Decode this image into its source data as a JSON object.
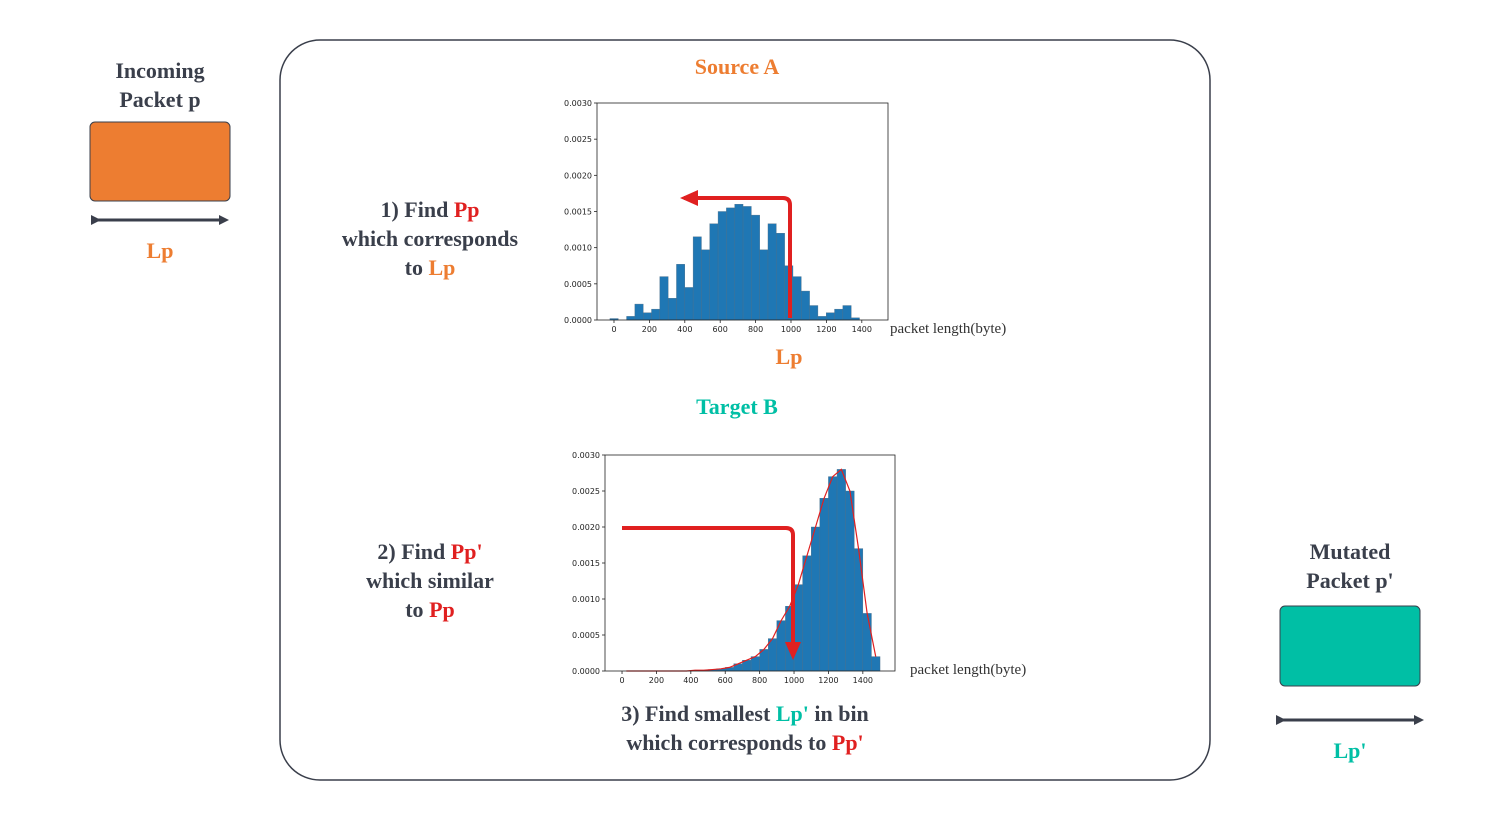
{
  "input": {
    "title_lines": [
      "Incoming",
      "Packet p"
    ],
    "length_label": "Lp"
  },
  "output": {
    "title_lines": [
      "Mutated",
      "Packet p'"
    ],
    "length_label": "Lp'"
  },
  "source_heading": "Source A",
  "target_heading": "Target B",
  "steps": [
    {
      "parts": [
        "1) Find ",
        "Pp",
        "which corresponds",
        "to ",
        "Lp"
      ]
    },
    {
      "parts": [
        "2) Find ",
        "Pp'",
        "which similar",
        "to ",
        "Pp"
      ]
    },
    {
      "parts": [
        "3) Find smallest ",
        "Lp'",
        " in bin",
        "which corresponds to ",
        "Pp'"
      ]
    }
  ],
  "source_histogram": {
    "type": "histogram",
    "bins": [
      -23,
      24,
      71,
      118,
      165,
      212,
      259,
      306,
      353,
      400,
      447,
      494,
      541,
      588,
      635,
      682,
      729,
      776,
      823,
      870,
      917,
      964,
      1011,
      1058,
      1105,
      1152,
      1199,
      1246,
      1293,
      1340,
      1387,
      1434,
      1481
    ],
    "counts": [
      2e-05,
      0,
      5e-05,
      0.00022,
      0.0001,
      0.00015,
      0.0006,
      0.0003,
      0.00077,
      0.00045,
      0.00115,
      0.00097,
      0.00133,
      0.0015,
      0.00155,
      0.0016,
      0.00157,
      0.00145,
      0.00097,
      0.00133,
      0.0012,
      0.00075,
      0.0006,
      0.0004,
      0.0002,
      5e-05,
      0.0001,
      0.00015,
      0.0002,
      3e-05,
      0,
      0
    ],
    "color": "#1f77b4",
    "xlim": [
      -96,
      1548
    ],
    "ylim": [
      0,
      0.003
    ],
    "xticks": [
      0,
      200,
      400,
      600,
      800,
      1000,
      1200,
      1400
    ],
    "yticks": [
      {
        "value": 0,
        "label": "0.0000"
      },
      {
        "value": 0.0005,
        "label": "0.0005"
      },
      {
        "value": 0.001,
        "label": "0.0010"
      },
      {
        "value": 0.0015,
        "label": "0.0015"
      },
      {
        "value": 0.002,
        "label": "0.0020"
      },
      {
        "value": 0.0025,
        "label": "0.0025"
      },
      {
        "value": 0.003,
        "label": "0.0030"
      }
    ],
    "x_label": "packet length(byte)",
    "annotation": "Lp"
  },
  "target_histogram": {
    "type": "histogram",
    "bins": [
      0,
      50,
      100,
      150,
      200,
      250,
      300,
      350,
      400,
      450,
      500,
      550,
      600,
      650,
      700,
      750,
      800,
      850,
      900,
      950,
      1000,
      1050,
      1100,
      1150,
      1200,
      1250,
      1300,
      1350,
      1400,
      1450,
      1500
    ],
    "counts": [
      0,
      0,
      0,
      0,
      0,
      0,
      0,
      0,
      1e-05,
      1e-05,
      2e-05,
      3e-05,
      5e-05,
      0.0001,
      0.00015,
      0.0002,
      0.0003,
      0.00045,
      0.0007,
      0.0009,
      0.0012,
      0.0016,
      0.002,
      0.0024,
      0.0027,
      0.0028,
      0.0025,
      0.0017,
      0.0008,
      0.0002
    ],
    "color": "#1f77b4",
    "curve_color": "#e02020",
    "xlim": [
      -99,
      1587
    ],
    "ylim": [
      0,
      0.003
    ],
    "xticks": [
      0,
      200,
      400,
      600,
      800,
      1000,
      1200,
      1400
    ],
    "yticks": [
      {
        "value": 0,
        "label": "0.0000"
      },
      {
        "value": 0.0005,
        "label": "0.0005"
      },
      {
        "value": 0.001,
        "label": "0.0010"
      },
      {
        "value": 0.0015,
        "label": "0.0015"
      },
      {
        "value": 0.002,
        "label": "0.0020"
      },
      {
        "value": 0.0025,
        "label": "0.0025"
      },
      {
        "value": 0.003,
        "label": "0.0030"
      }
    ],
    "x_label": "packet length(byte)"
  }
}
